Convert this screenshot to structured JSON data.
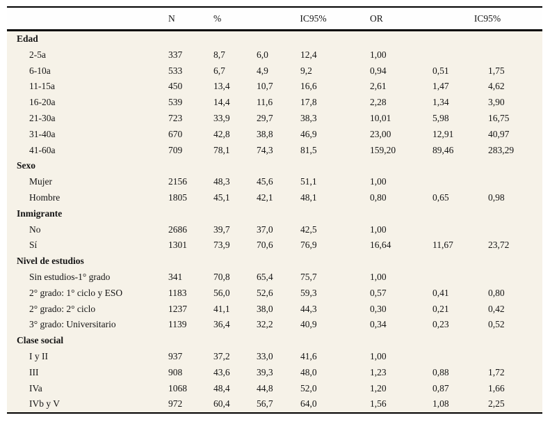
{
  "accent_colors": {
    "table_body_background": "#f6f2e8",
    "header_background": "#fefefe",
    "rule_color": "#000000",
    "text_color": "#141414"
  },
  "table": {
    "headers": {
      "label": "",
      "n": "N",
      "pct": "%",
      "ic95_first": "IC95%",
      "or": "OR",
      "ic95_second": "IC95%"
    },
    "sections": [
      {
        "label": "Edad",
        "rows": [
          {
            "label": "2-5a",
            "n": "337",
            "pct": "8,7",
            "ic_low": "6,0",
            "ic_high": "12,4",
            "or": "1,00",
            "or_low": "",
            "or_high": ""
          },
          {
            "label": "6-10a",
            "n": "533",
            "pct": "6,7",
            "ic_low": "4,9",
            "ic_high": "9,2",
            "or": "0,94",
            "or_low": "0,51",
            "or_high": "1,75"
          },
          {
            "label": "11-15a",
            "n": "450",
            "pct": "13,4",
            "ic_low": "10,7",
            "ic_high": "16,6",
            "or": "2,61",
            "or_low": "1,47",
            "or_high": "4,62"
          },
          {
            "label": "16-20a",
            "n": "539",
            "pct": "14,4",
            "ic_low": "11,6",
            "ic_high": "17,8",
            "or": "2,28",
            "or_low": "1,34",
            "or_high": "3,90"
          },
          {
            "label": "21-30a",
            "n": "723",
            "pct": "33,9",
            "ic_low": "29,7",
            "ic_high": "38,3",
            "or": "10,01",
            "or_low": "5,98",
            "or_high": "16,75"
          },
          {
            "label": "31-40a",
            "n": "670",
            "pct": "42,8",
            "ic_low": "38,8",
            "ic_high": "46,9",
            "or": "23,00",
            "or_low": "12,91",
            "or_high": "40,97"
          },
          {
            "label": "41-60a",
            "n": "709",
            "pct": "78,1",
            "ic_low": "74,3",
            "ic_high": "81,5",
            "or": "159,20",
            "or_low": "89,46",
            "or_high": "283,29"
          }
        ]
      },
      {
        "label": "Sexo",
        "rows": [
          {
            "label": "Mujer",
            "n": "2156",
            "pct": "48,3",
            "ic_low": "45,6",
            "ic_high": "51,1",
            "or": "1,00",
            "or_low": "",
            "or_high": ""
          },
          {
            "label": "Hombre",
            "n": "1805",
            "pct": "45,1",
            "ic_low": "42,1",
            "ic_high": "48,1",
            "or": "0,80",
            "or_low": "0,65",
            "or_high": "0,98"
          }
        ]
      },
      {
        "label": "Inmigrante",
        "rows": [
          {
            "label": "No",
            "n": "2686",
            "pct": "39,7",
            "ic_low": "37,0",
            "ic_high": "42,5",
            "or": "1,00",
            "or_low": "",
            "or_high": ""
          },
          {
            "label": "Sí",
            "n": "1301",
            "pct": "73,9",
            "ic_low": "70,6",
            "ic_high": "76,9",
            "or": "16,64",
            "or_low": "11,67",
            "or_high": "23,72"
          }
        ]
      },
      {
        "label": "Nivel de estudios",
        "rows": [
          {
            "label": "Sin estudios-1° grado",
            "n": "341",
            "pct": "70,8",
            "ic_low": "65,4",
            "ic_high": "75,7",
            "or": "1,00",
            "or_low": "",
            "or_high": ""
          },
          {
            "label": "2° grado: 1° ciclo y ESO",
            "n": "1183",
            "pct": "56,0",
            "ic_low": "52,6",
            "ic_high": "59,3",
            "or": "0,57",
            "or_low": "0,41",
            "or_high": "0,80"
          },
          {
            "label": "2° grado: 2° ciclo",
            "n": "1237",
            "pct": "41,1",
            "ic_low": "38,0",
            "ic_high": "44,3",
            "or": "0,30",
            "or_low": "0,21",
            "or_high": "0,42"
          },
          {
            "label": "3° grado: Universitario",
            "n": "1139",
            "pct": "36,4",
            "ic_low": "32,2",
            "ic_high": "40,9",
            "or": "0,34",
            "or_low": "0,23",
            "or_high": "0,52"
          }
        ]
      },
      {
        "label": "Clase social",
        "rows": [
          {
            "label": "I y II",
            "n": "937",
            "pct": "37,2",
            "ic_low": "33,0",
            "ic_high": "41,6",
            "or": "1,00",
            "or_low": "",
            "or_high": ""
          },
          {
            "label": "III",
            "n": "908",
            "pct": "43,6",
            "ic_low": "39,3",
            "ic_high": "48,0",
            "or": "1,23",
            "or_low": "0,88",
            "or_high": "1,72"
          },
          {
            "label": "IVa",
            "n": "1068",
            "pct": "48,4",
            "ic_low": "44,8",
            "ic_high": "52,0",
            "or": "1,20",
            "or_low": "0,87",
            "or_high": "1,66"
          },
          {
            "label": "IVb y V",
            "n": "972",
            "pct": "60,4",
            "ic_low": "56,7",
            "ic_high": "64,0",
            "or": "1,56",
            "or_low": "1,08",
            "or_high": "2,25"
          }
        ]
      }
    ]
  }
}
